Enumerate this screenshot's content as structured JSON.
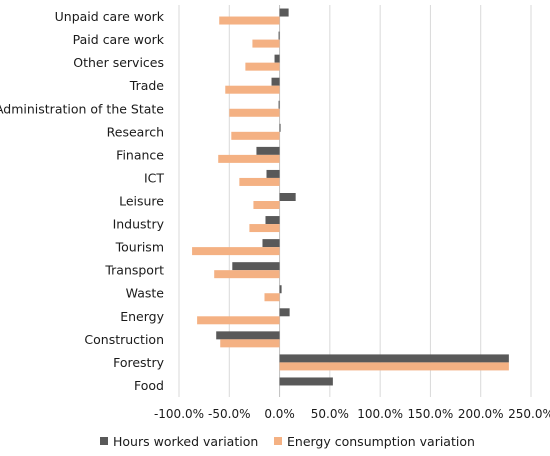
{
  "chart_data": {
    "type": "bar",
    "orientation": "horizontal",
    "categories": [
      "Unpaid care work",
      "Paid care work",
      "Other services",
      "Trade",
      "Administration of the State",
      "Research",
      "Finance",
      "ICT",
      "Leisure",
      "Industry",
      "Tourism",
      "Transport",
      "Waste",
      "Energy",
      "Construction",
      "Forestry",
      "Food"
    ],
    "series": [
      {
        "name": "Hours worked variation",
        "color": "#595959",
        "values": [
          9,
          -1,
          -5,
          -8,
          -1,
          1,
          -23,
          -13,
          16,
          -14,
          -17,
          -47,
          2,
          10,
          -63,
          228,
          53
        ]
      },
      {
        "name": "Energy consumption variation",
        "color": "#f4b183",
        "values": [
          -60,
          -27,
          -34,
          -54,
          -50,
          -48,
          -61,
          -40,
          -26,
          -30,
          -87,
          -65,
          -15,
          -82,
          -59,
          228,
          0
        ]
      }
    ],
    "xlim": [
      -100,
      250
    ],
    "ticks": [
      -100,
      -50,
      0,
      50,
      100,
      150,
      200,
      250
    ],
    "tick_labels": [
      "-100.0%",
      "-50.0%",
      "0.0%",
      "50.0%",
      "100.0%",
      "150.0%",
      "200.0%",
      "250.0%"
    ],
    "grid": true,
    "legend": "bottom",
    "title": "",
    "xlabel": "",
    "ylabel": ""
  }
}
